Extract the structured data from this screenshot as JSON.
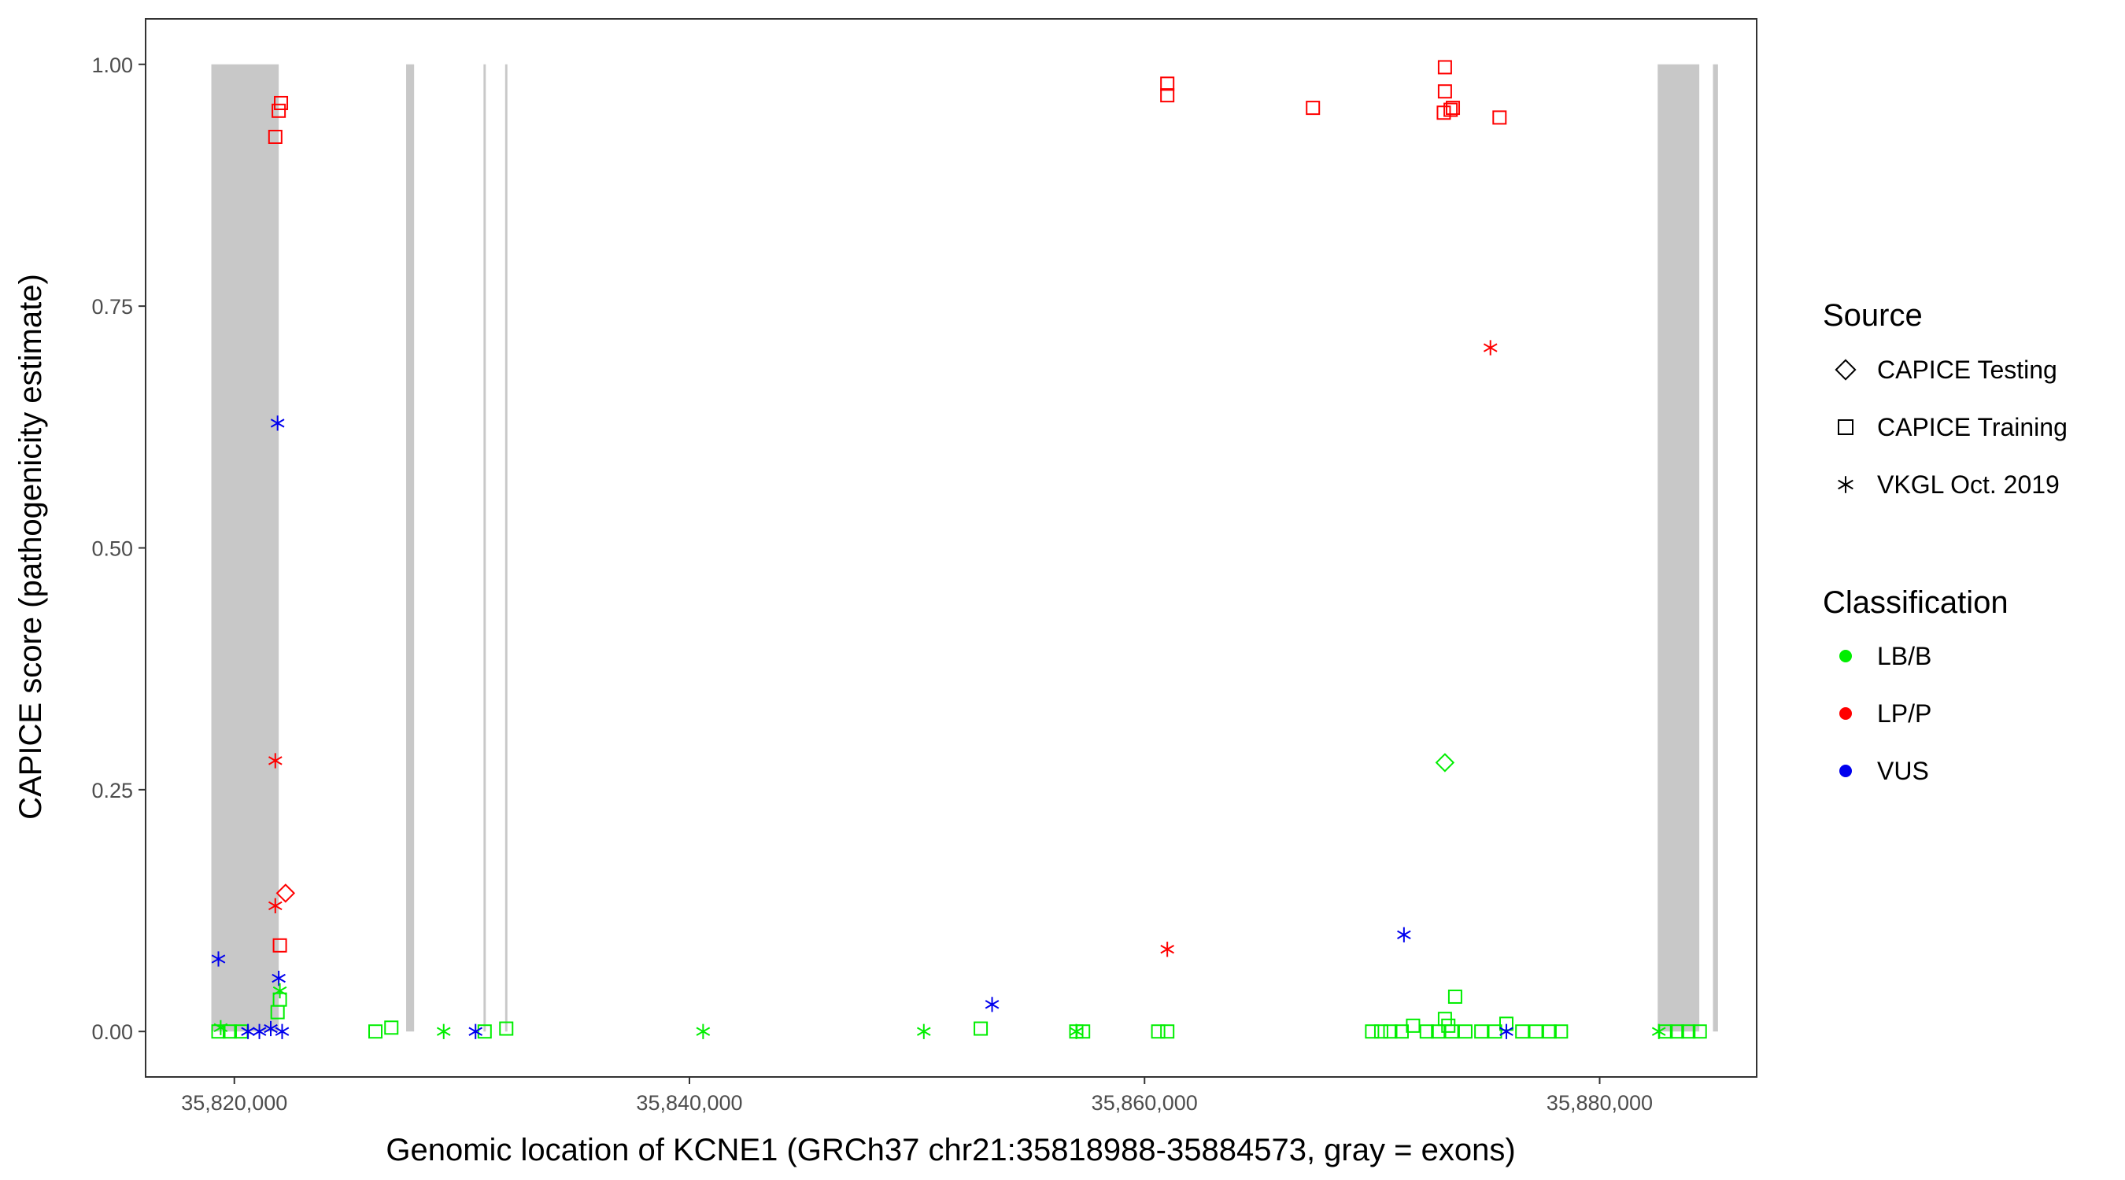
{
  "chart_data": {
    "type": "scatter",
    "title": "",
    "xlabel": "Genomic location of KCNE1 (GRCh37 chr21:35818988-35884573, gray = exons)",
    "ylabel": "CAPICE score (pathogenicity estimate)",
    "xlim": [
      35816100,
      35886900
    ],
    "ylim": [
      -0.047,
      1.047
    ],
    "x_ticks": [
      35820000,
      35840000,
      35860000,
      35880000
    ],
    "x_tick_labels": [
      "35,820,000",
      "35,840,000",
      "35,860,000",
      "35,880,000"
    ],
    "y_ticks": [
      0,
      0.25,
      0.5,
      0.75,
      1.0
    ],
    "y_tick_labels": [
      "0.00",
      "0.25",
      "0.50",
      "0.75",
      "1.00"
    ],
    "grid": false,
    "exons": [
      [
        35818988,
        35821950
      ],
      [
        35827550,
        35827900
      ],
      [
        35830950,
        35831050
      ],
      [
        35831900,
        35832000
      ],
      [
        35882550,
        35884380
      ],
      [
        35884980,
        35885200
      ]
    ],
    "exon_color": "#c8c8c8",
    "legend_position": "right",
    "legend": {
      "source_title": "Source",
      "source_items": [
        {
          "label": "CAPICE Testing",
          "shape": "diamond"
        },
        {
          "label": "CAPICE Training",
          "shape": "square"
        },
        {
          "label": "VKGL Oct. 2019",
          "shape": "asterisk"
        }
      ],
      "class_title": "Classification",
      "class_items": [
        {
          "label": "LB/B",
          "color": "#00ee00"
        },
        {
          "label": "LP/P",
          "color": "#ff0000"
        },
        {
          "label": "VUS",
          "color": "#0000ee"
        }
      ]
    },
    "colors": {
      "LB/B": "#00ee00",
      "LP/P": "#ff0000",
      "VUS": "#0000ee"
    },
    "series": [
      {
        "name": "CAPICE Testing",
        "shape": "diamond",
        "points": [
          {
            "x": 35822250,
            "y": 0.143,
            "class": "LP/P"
          },
          {
            "x": 35873200,
            "y": 0.278,
            "class": "LB/B"
          }
        ]
      },
      {
        "name": "CAPICE Training",
        "shape": "square",
        "points": [
          {
            "x": 35822050,
            "y": 0.96,
            "class": "LP/P"
          },
          {
            "x": 35821950,
            "y": 0.952,
            "class": "LP/P"
          },
          {
            "x": 35821800,
            "y": 0.925,
            "class": "LP/P"
          },
          {
            "x": 35822000,
            "y": 0.089,
            "class": "LP/P"
          },
          {
            "x": 35861000,
            "y": 0.98,
            "class": "LP/P"
          },
          {
            "x": 35861000,
            "y": 0.968,
            "class": "LP/P"
          },
          {
            "x": 35867400,
            "y": 0.955,
            "class": "LP/P"
          },
          {
            "x": 35873200,
            "y": 0.997,
            "class": "LP/P"
          },
          {
            "x": 35873200,
            "y": 0.972,
            "class": "LP/P"
          },
          {
            "x": 35873150,
            "y": 0.95,
            "class": "LP/P"
          },
          {
            "x": 35873450,
            "y": 0.953,
            "class": "LP/P"
          },
          {
            "x": 35873550,
            "y": 0.955,
            "class": "LP/P"
          },
          {
            "x": 35875600,
            "y": 0.945,
            "class": "LP/P"
          },
          {
            "x": 35819300,
            "y": 0.0,
            "class": "LB/B"
          },
          {
            "x": 35819800,
            "y": 0.0,
            "class": "LB/B"
          },
          {
            "x": 35820300,
            "y": 0.0,
            "class": "LB/B"
          },
          {
            "x": 35821900,
            "y": 0.02,
            "class": "LB/B"
          },
          {
            "x": 35822000,
            "y": 0.033,
            "class": "LB/B"
          },
          {
            "x": 35826200,
            "y": 0.0,
            "class": "LB/B"
          },
          {
            "x": 35826900,
            "y": 0.004,
            "class": "LB/B"
          },
          {
            "x": 35831000,
            "y": 0.0,
            "class": "LB/B"
          },
          {
            "x": 35831950,
            "y": 0.003,
            "class": "LB/B"
          },
          {
            "x": 35852800,
            "y": 0.003,
            "class": "LB/B"
          },
          {
            "x": 35857000,
            "y": 0.0,
            "class": "LB/B"
          },
          {
            "x": 35857300,
            "y": 0.0,
            "class": "LB/B"
          },
          {
            "x": 35860600,
            "y": 0.0,
            "class": "LB/B"
          },
          {
            "x": 35861000,
            "y": 0.0,
            "class": "LB/B"
          },
          {
            "x": 35870000,
            "y": 0.0,
            "class": "LB/B"
          },
          {
            "x": 35870400,
            "y": 0.0,
            "class": "LB/B"
          },
          {
            "x": 35870800,
            "y": 0.0,
            "class": "LB/B"
          },
          {
            "x": 35871300,
            "y": 0.0,
            "class": "LB/B"
          },
          {
            "x": 35871800,
            "y": 0.006,
            "class": "LB/B"
          },
          {
            "x": 35872400,
            "y": 0.0,
            "class": "LB/B"
          },
          {
            "x": 35872900,
            "y": 0.0,
            "class": "LB/B"
          },
          {
            "x": 35873200,
            "y": 0.013,
            "class": "LB/B"
          },
          {
            "x": 35873350,
            "y": 0.006,
            "class": "LB/B"
          },
          {
            "x": 35873500,
            "y": 0.0,
            "class": "LB/B"
          },
          {
            "x": 35873650,
            "y": 0.036,
            "class": "LB/B"
          },
          {
            "x": 35874100,
            "y": 0.0,
            "class": "LB/B"
          },
          {
            "x": 35874800,
            "y": 0.0,
            "class": "LB/B"
          },
          {
            "x": 35875400,
            "y": 0.0,
            "class": "LB/B"
          },
          {
            "x": 35875900,
            "y": 0.008,
            "class": "LB/B"
          },
          {
            "x": 35876600,
            "y": 0.0,
            "class": "LB/B"
          },
          {
            "x": 35877200,
            "y": 0.0,
            "class": "LB/B"
          },
          {
            "x": 35877800,
            "y": 0.0,
            "class": "LB/B"
          },
          {
            "x": 35878300,
            "y": 0.0,
            "class": "LB/B"
          },
          {
            "x": 35882900,
            "y": 0.0,
            "class": "LB/B"
          },
          {
            "x": 35883400,
            "y": 0.0,
            "class": "LB/B"
          },
          {
            "x": 35883900,
            "y": 0.0,
            "class": "LB/B"
          },
          {
            "x": 35884400,
            "y": 0.0,
            "class": "LB/B"
          }
        ]
      },
      {
        "name": "VKGL Oct. 2019",
        "shape": "asterisk",
        "points": [
          {
            "x": 35821800,
            "y": 0.28,
            "class": "LP/P"
          },
          {
            "x": 35821800,
            "y": 0.13,
            "class": "LP/P"
          },
          {
            "x": 35861000,
            "y": 0.085,
            "class": "LP/P"
          },
          {
            "x": 35875200,
            "y": 0.707,
            "class": "LP/P"
          },
          {
            "x": 35821900,
            "y": 0.629,
            "class": "VUS"
          },
          {
            "x": 35819300,
            "y": 0.075,
            "class": "VUS"
          },
          {
            "x": 35821950,
            "y": 0.055,
            "class": "VUS"
          },
          {
            "x": 35820600,
            "y": 0.0,
            "class": "VUS"
          },
          {
            "x": 35821100,
            "y": 0.0,
            "class": "VUS"
          },
          {
            "x": 35821600,
            "y": 0.003,
            "class": "VUS"
          },
          {
            "x": 35822100,
            "y": 0.0,
            "class": "VUS"
          },
          {
            "x": 35830600,
            "y": 0.0,
            "class": "VUS"
          },
          {
            "x": 35853300,
            "y": 0.028,
            "class": "VUS"
          },
          {
            "x": 35871400,
            "y": 0.1,
            "class": "VUS"
          },
          {
            "x": 35875900,
            "y": 0.0,
            "class": "VUS"
          },
          {
            "x": 35819400,
            "y": 0.004,
            "class": "LB/B"
          },
          {
            "x": 35822000,
            "y": 0.042,
            "class": "LB/B"
          },
          {
            "x": 35829200,
            "y": 0.0,
            "class": "LB/B"
          },
          {
            "x": 35840600,
            "y": 0.0,
            "class": "LB/B"
          },
          {
            "x": 35850300,
            "y": 0.0,
            "class": "LB/B"
          },
          {
            "x": 35857000,
            "y": 0.0,
            "class": "LB/B"
          },
          {
            "x": 35882600,
            "y": 0.0,
            "class": "LB/B"
          }
        ]
      }
    ]
  }
}
